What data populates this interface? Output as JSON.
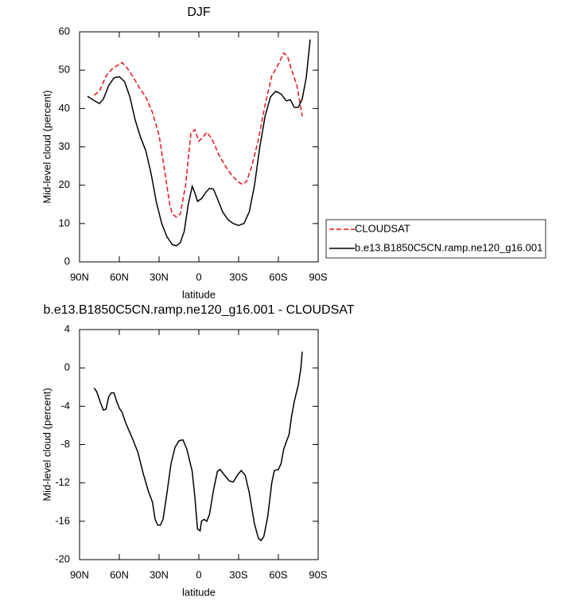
{
  "chart_data": [
    {
      "type": "line",
      "title": "DJF",
      "xlabel": "latitude",
      "ylabel": "Mid-level cloud (percent)",
      "xlim": [
        90,
        -90
      ],
      "xticks": [
        {
          "value": 90,
          "label": "90N"
        },
        {
          "value": 60,
          "label": "60N"
        },
        {
          "value": 30,
          "label": "30N"
        },
        0,
        {
          "value": -30,
          "label": "30S"
        },
        {
          "value": -60,
          "label": "60S"
        },
        {
          "value": -90,
          "label": "90S"
        }
      ],
      "ylim": [
        0,
        60
      ],
      "yticks": [
        0,
        10,
        20,
        30,
        40,
        50,
        60
      ],
      "legend": "right",
      "series": [
        {
          "name": "CLOUDSAT",
          "color": "#e8141c",
          "dash": "dashed",
          "x": [
            79,
            75,
            70,
            65,
            60,
            58,
            55,
            50,
            45,
            40,
            35,
            30,
            25,
            22,
            20,
            17,
            14,
            10,
            6,
            3,
            0,
            -3,
            -6,
            -10,
            -15,
            -20,
            -25,
            -30,
            -33,
            -36,
            -40,
            -45,
            -50,
            -55,
            -60,
            -64,
            -67,
            -70,
            -74,
            -77,
            -78
          ],
          "values": [
            43.5,
            44.5,
            48.5,
            50.5,
            51.5,
            52,
            51,
            48.5,
            45.5,
            43,
            39,
            33,
            22,
            15,
            12.5,
            11.7,
            12.5,
            20,
            33.5,
            34.5,
            31.5,
            32.5,
            33.8,
            32,
            28,
            25,
            22.5,
            20.8,
            20.2,
            21,
            25,
            32,
            41,
            48.5,
            51.5,
            54.5,
            53.5,
            50,
            46,
            40,
            38
          ]
        },
        {
          "name": "b.e13.B1850C5CN.ramp.ne120_g16.001",
          "color": "#000000",
          "dash": "solid",
          "x": [
            84,
            80,
            75,
            72,
            68,
            64,
            60,
            56,
            52,
            48,
            44,
            40,
            36,
            32,
            28,
            24,
            20,
            17,
            14,
            11,
            8,
            5,
            3,
            1,
            -2,
            -5,
            -8,
            -11,
            -14,
            -18,
            -22,
            -26,
            -30,
            -34,
            -38,
            -42,
            -46,
            -50,
            -54,
            -58,
            -62,
            -66,
            -69,
            -72,
            -75,
            -78,
            -81,
            -84
          ],
          "values": [
            43.2,
            42.3,
            41.3,
            42.5,
            46,
            48,
            48.3,
            47,
            43,
            37,
            32.5,
            29,
            23,
            15.5,
            10,
            6.5,
            4.5,
            4.2,
            5,
            8,
            15,
            19.7,
            18,
            15.8,
            16.5,
            18,
            19.2,
            19,
            16.5,
            13,
            11,
            10,
            9.5,
            10,
            13,
            20,
            30,
            38,
            43,
            44.5,
            43.8,
            42,
            42.3,
            40.3,
            40.3,
            42.5,
            48,
            58
          ]
        }
      ]
    },
    {
      "type": "line",
      "title": "b.e13.B1850C5CN.ramp.ne120_g16.001 - CLOUDSAT",
      "xlabel": "latitude",
      "ylabel": "Mid-level cloud (percent)",
      "xlim": [
        90,
        -90
      ],
      "xticks": [
        {
          "value": 90,
          "label": "90N"
        },
        {
          "value": 60,
          "label": "60N"
        },
        {
          "value": 30,
          "label": "30N"
        },
        0,
        {
          "value": -30,
          "label": "30S"
        },
        {
          "value": -60,
          "label": "60S"
        },
        {
          "value": -90,
          "label": "90S"
        }
      ],
      "ylim": [
        -20,
        4
      ],
      "yticks": [
        -20,
        -16,
        -12,
        -8,
        -4,
        0,
        4
      ],
      "series": [
        {
          "color": "#000000",
          "dash": "solid",
          "x": [
            79,
            77,
            74,
            72,
            70,
            68,
            66,
            64,
            62,
            60,
            58,
            55,
            50,
            46,
            42,
            38,
            35,
            33,
            31,
            29,
            27,
            24,
            21,
            18,
            15,
            12,
            9,
            5,
            3,
            1,
            -1,
            -2,
            -4,
            -6,
            -8,
            -11,
            -14,
            -16,
            -20,
            -23,
            -26,
            -29,
            -32,
            -35,
            -38,
            -42,
            -45,
            -47,
            -49,
            -52,
            -55,
            -57,
            -60,
            -62,
            -64,
            -66,
            -68,
            -70,
            -72,
            -75,
            -77,
            -78
          ],
          "values": [
            -2.1,
            -2.5,
            -3.7,
            -4.4,
            -4.3,
            -3,
            -2.6,
            -2.6,
            -3.5,
            -4.2,
            -4.6,
            -5.8,
            -7.4,
            -8.8,
            -11,
            -12.9,
            -14,
            -15.8,
            -16.4,
            -16.4,
            -15.8,
            -13,
            -10,
            -8.3,
            -7.6,
            -7.5,
            -8.5,
            -10.8,
            -13.5,
            -16.8,
            -17,
            -16,
            -15.8,
            -16,
            -15.3,
            -12.8,
            -10.8,
            -10.6,
            -11.3,
            -11.8,
            -11.9,
            -11.2,
            -10.7,
            -11.2,
            -13,
            -16.3,
            -17.8,
            -18,
            -17.6,
            -15.5,
            -12,
            -10.7,
            -10.6,
            -10,
            -8.5,
            -7.7,
            -7,
            -5,
            -3.5,
            -1.8,
            0,
            1.7
          ]
        }
      ]
    }
  ]
}
